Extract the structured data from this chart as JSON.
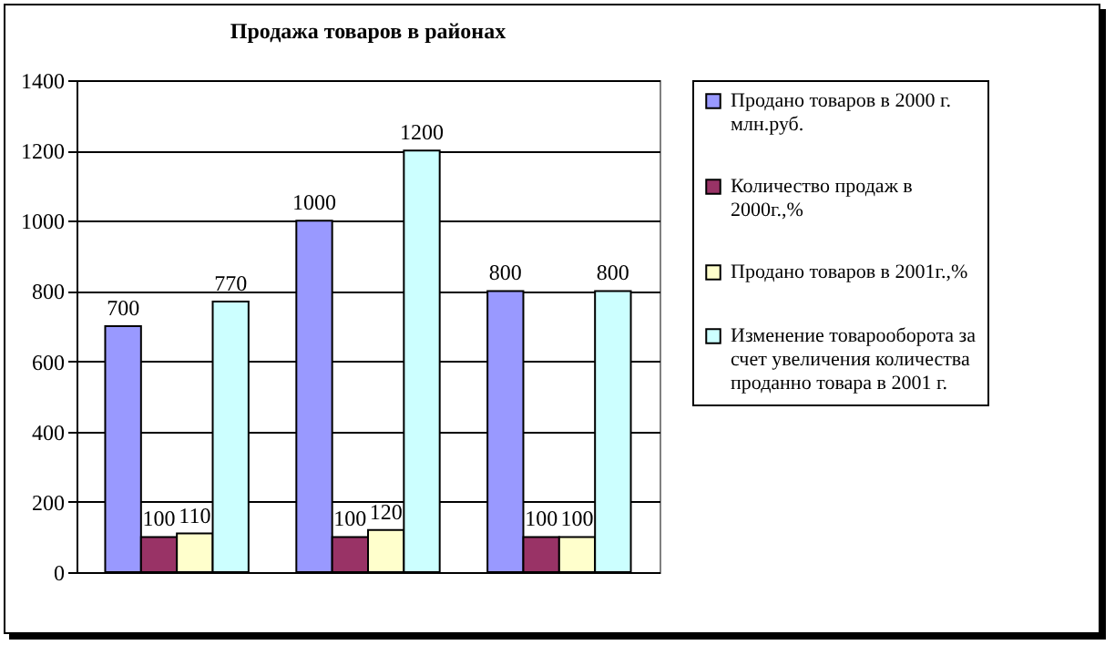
{
  "chart_data": {
    "type": "bar",
    "title": "Продажа товаров в районах",
    "categories": [
      null,
      null,
      null
    ],
    "series": [
      {
        "name": "Продано товаров в 2000 г. млн.руб.",
        "color": "#9999ff",
        "values": [
          700,
          1000,
          800
        ]
      },
      {
        "name": "Количество продаж в 2000г.,%",
        "color": "#993366",
        "values": [
          100,
          100,
          100
        ]
      },
      {
        "name": "Продано товаров в 2001г.,%",
        "color": "#ffffcc",
        "values": [
          110,
          120,
          100
        ]
      },
      {
        "name": "Изменение товарооборота за счет увеличения количества проданно товара в 2001 г.",
        "color": "#ccffff",
        "values": [
          770,
          1200,
          800
        ]
      }
    ],
    "ylim": [
      0,
      1400
    ],
    "yticks": [
      0,
      200,
      400,
      600,
      800,
      1000,
      1200,
      1400
    ],
    "grid": "y",
    "legend": "right",
    "data_labels": true
  }
}
